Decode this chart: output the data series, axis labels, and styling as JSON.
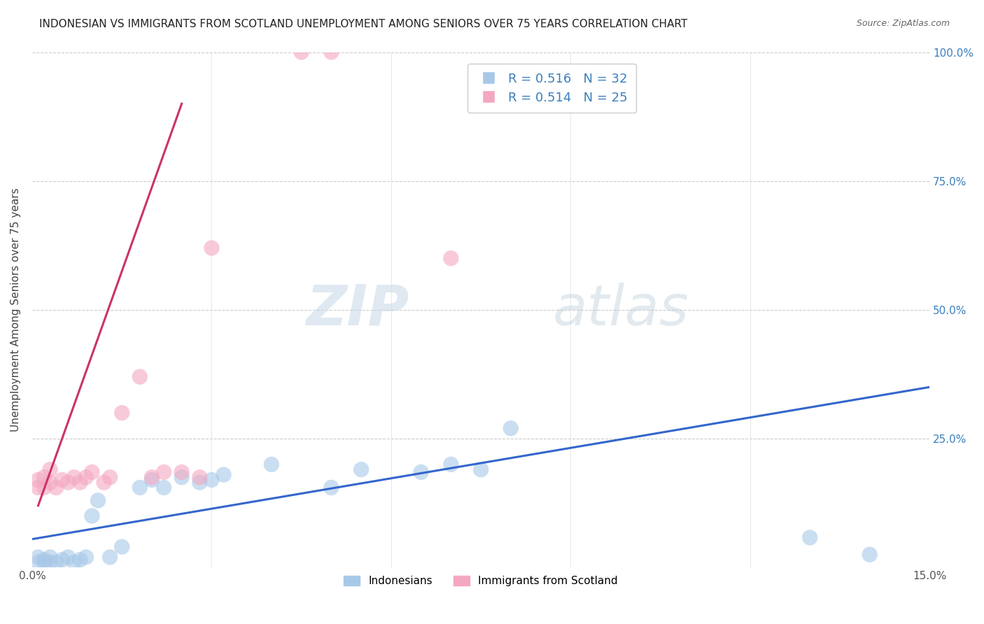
{
  "title": "INDONESIAN VS IMMIGRANTS FROM SCOTLAND UNEMPLOYMENT AMONG SENIORS OVER 75 YEARS CORRELATION CHART",
  "source": "Source: ZipAtlas.com",
  "ylabel": "Unemployment Among Seniors over 75 years",
  "xlim": [
    0,
    0.15
  ],
  "ylim": [
    0,
    1.0
  ],
  "blue_R": 0.516,
  "blue_N": 32,
  "pink_R": 0.514,
  "pink_N": 25,
  "blue_color": "#a8c8e8",
  "pink_color": "#f4a8c0",
  "blue_line_color": "#3366cc",
  "pink_line_color": "#cc3366",
  "watermark_color": "#dce8f0",
  "indonesian_x": [
    0.001,
    0.001,
    0.002,
    0.002,
    0.003,
    0.003,
    0.004,
    0.005,
    0.006,
    0.007,
    0.008,
    0.009,
    0.01,
    0.011,
    0.013,
    0.015,
    0.018,
    0.02,
    0.022,
    0.025,
    0.028,
    0.03,
    0.032,
    0.04,
    0.05,
    0.055,
    0.065,
    0.07,
    0.075,
    0.08,
    0.13,
    0.14
  ],
  "indonesian_y": [
    0.01,
    0.02,
    0.01,
    0.015,
    0.01,
    0.02,
    0.01,
    0.015,
    0.02,
    0.01,
    0.015,
    0.02,
    0.1,
    0.13,
    0.02,
    0.04,
    0.155,
    0.17,
    0.155,
    0.175,
    0.165,
    0.17,
    0.18,
    0.2,
    0.155,
    0.19,
    0.185,
    0.2,
    0.19,
    0.27,
    0.058,
    0.025
  ],
  "scotland_x": [
    0.001,
    0.001,
    0.002,
    0.002,
    0.003,
    0.003,
    0.004,
    0.005,
    0.006,
    0.007,
    0.008,
    0.009,
    0.01,
    0.012,
    0.013,
    0.015,
    0.018,
    0.02,
    0.022,
    0.025,
    0.028,
    0.03,
    0.045,
    0.05,
    0.07
  ],
  "scotland_y": [
    0.155,
    0.17,
    0.155,
    0.175,
    0.165,
    0.19,
    0.155,
    0.17,
    0.165,
    0.175,
    0.165,
    0.175,
    0.185,
    0.165,
    0.175,
    0.3,
    0.37,
    0.175,
    0.185,
    0.185,
    0.175,
    0.62,
    1.0,
    1.0,
    0.6
  ],
  "blue_trend_x": [
    0.0,
    0.15
  ],
  "blue_trend_y": [
    0.055,
    0.35
  ],
  "pink_trend_x": [
    0.001,
    0.025
  ],
  "pink_trend_y": [
    0.12,
    0.9
  ]
}
